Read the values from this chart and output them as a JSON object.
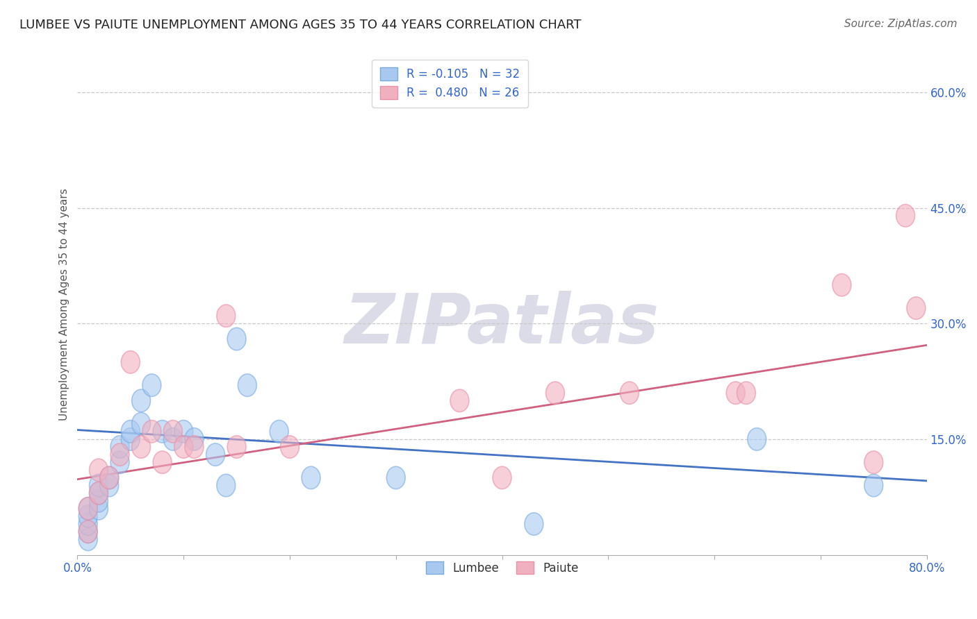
{
  "title": "LUMBEE VS PAIUTE UNEMPLOYMENT AMONG AGES 35 TO 44 YEARS CORRELATION CHART",
  "source": "Source: ZipAtlas.com",
  "ylabel": "Unemployment Among Ages 35 to 44 years",
  "xlim": [
    0.0,
    0.8
  ],
  "ylim": [
    0.0,
    0.65
  ],
  "xtick_positions": [
    0.0,
    0.1,
    0.2,
    0.3,
    0.4,
    0.5,
    0.6,
    0.7,
    0.8
  ],
  "xlabels_show": [
    "0.0%",
    "",
    "",
    "",
    "",
    "",
    "",
    "",
    "80.0%"
  ],
  "ytick_positions": [
    0.15,
    0.3,
    0.45,
    0.6
  ],
  "yticklabels": [
    "15.0%",
    "30.0%",
    "45.0%",
    "60.0%"
  ],
  "grid_color": "#c8c8c8",
  "background_color": "#ffffff",
  "lumbee_color": "#a8c8f0",
  "paiute_color": "#f0b0c0",
  "lumbee_edge_color": "#7aabdf",
  "paiute_edge_color": "#e890a8",
  "lumbee_line_color": "#4472c4",
  "paiute_line_color": "#d06080",
  "R_lumbee": -0.105,
  "N_lumbee": 32,
  "R_paiute": 0.48,
  "N_paiute": 26,
  "lumbee_x": [
    0.01,
    0.01,
    0.01,
    0.01,
    0.01,
    0.02,
    0.02,
    0.02,
    0.02,
    0.03,
    0.03,
    0.04,
    0.04,
    0.05,
    0.05,
    0.06,
    0.06,
    0.07,
    0.08,
    0.09,
    0.1,
    0.11,
    0.13,
    0.14,
    0.15,
    0.16,
    0.19,
    0.22,
    0.3,
    0.43,
    0.64,
    0.75
  ],
  "lumbee_y": [
    0.02,
    0.03,
    0.04,
    0.05,
    0.06,
    0.06,
    0.07,
    0.08,
    0.09,
    0.09,
    0.1,
    0.12,
    0.14,
    0.15,
    0.16,
    0.17,
    0.2,
    0.22,
    0.16,
    0.15,
    0.16,
    0.15,
    0.13,
    0.09,
    0.28,
    0.22,
    0.16,
    0.1,
    0.1,
    0.04,
    0.15,
    0.09
  ],
  "paiute_x": [
    0.01,
    0.01,
    0.02,
    0.02,
    0.03,
    0.04,
    0.05,
    0.06,
    0.07,
    0.08,
    0.09,
    0.1,
    0.11,
    0.14,
    0.15,
    0.2,
    0.36,
    0.4,
    0.45,
    0.52,
    0.62,
    0.63,
    0.72,
    0.75,
    0.78,
    0.79
  ],
  "paiute_y": [
    0.03,
    0.06,
    0.08,
    0.11,
    0.1,
    0.13,
    0.25,
    0.14,
    0.16,
    0.12,
    0.16,
    0.14,
    0.14,
    0.31,
    0.14,
    0.14,
    0.2,
    0.1,
    0.21,
    0.21,
    0.21,
    0.21,
    0.35,
    0.12,
    0.44,
    0.32
  ],
  "lumbee_line_y0": 0.162,
  "lumbee_line_y1": 0.096,
  "paiute_line_y0": 0.098,
  "paiute_line_y1": 0.272,
  "watermark": "ZIPatlas",
  "watermark_color": "#dcdce8",
  "title_fontsize": 13,
  "axis_label_fontsize": 11,
  "tick_fontsize": 12,
  "legend_fontsize": 12,
  "source_fontsize": 11
}
